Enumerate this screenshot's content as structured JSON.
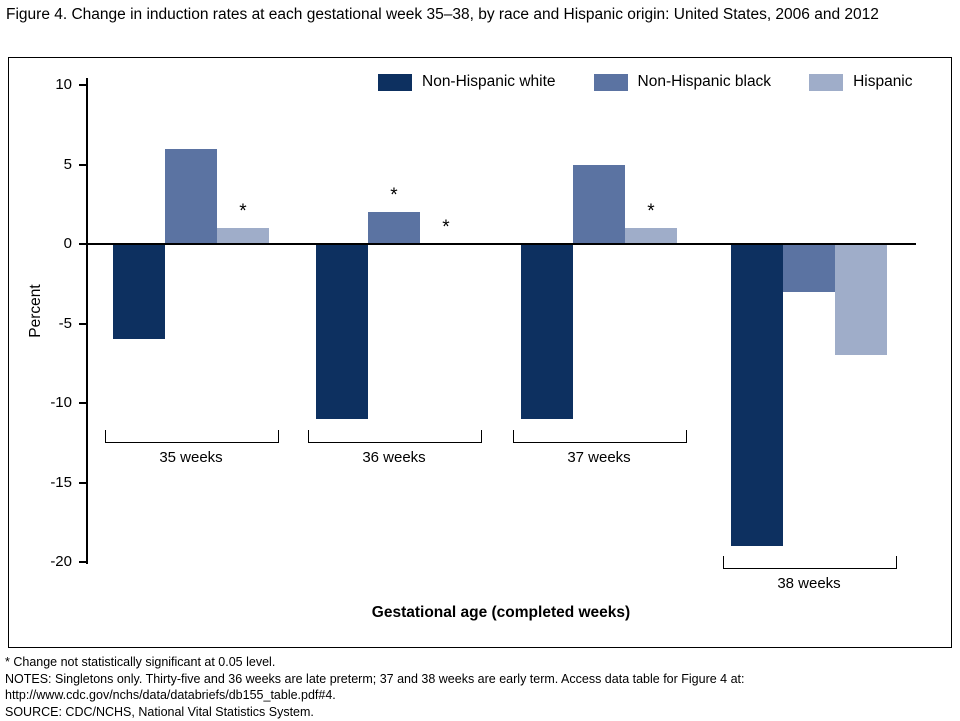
{
  "chart_data": {
    "type": "bar",
    "title": "Figure 4. Change in induction rates at each gestational week 35–38, by race and Hispanic origin: United States, 2006 and 2012",
    "xlabel": "Gestational age (completed weeks)",
    "ylabel": "Percent",
    "ylim": [
      -20,
      10
    ],
    "yticks": [
      10,
      5,
      0,
      -5,
      -10,
      -15,
      -20
    ],
    "grid": false,
    "legend_position": "top",
    "categories": [
      "35 weeks",
      "36 weeks",
      "37 weeks",
      "38 weeks"
    ],
    "series": [
      {
        "name": "Non-Hispanic white",
        "color": "#0d3060",
        "values": [
          -6,
          -11,
          -11,
          -19
        ],
        "not_significant": [
          false,
          false,
          false,
          false
        ]
      },
      {
        "name": "Non-Hispanic black",
        "color": "#5b73a2",
        "values": [
          6,
          2,
          5,
          -3
        ],
        "not_significant": [
          false,
          true,
          false,
          false
        ]
      },
      {
        "name": "Hispanic",
        "color": "#9fadc9",
        "values": [
          1,
          0,
          1,
          -7
        ],
        "not_significant": [
          true,
          true,
          true,
          false
        ]
      }
    ],
    "significance_marker": "*"
  },
  "footnotes": {
    "star": "* Change not statistically significant at 0.05 level.",
    "notes": "NOTES: Singletons only. Thirty-five and 36 weeks are late preterm; 37 and 38 weeks are early term. Access data table for Figure 4 at: http://www.cdc.gov/nchs/data/databriefs/db155_table.pdf#4.",
    "source": "SOURCE: CDC/NCHS, National Vital Statistics System."
  }
}
